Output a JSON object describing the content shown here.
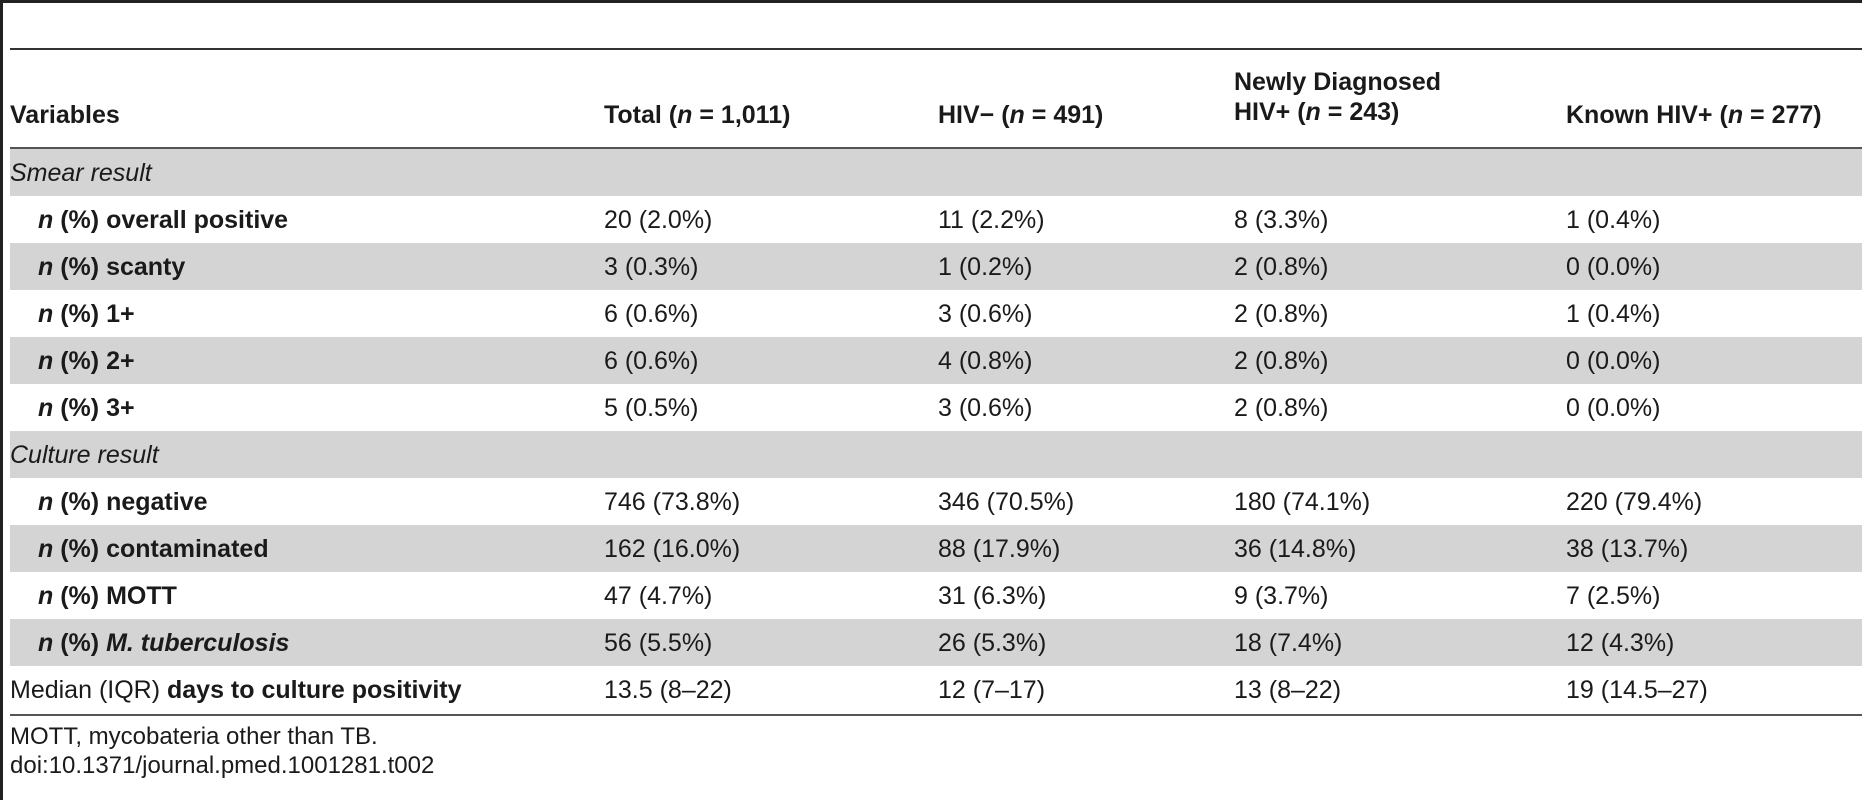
{
  "table": {
    "headers": {
      "variables": "Variables",
      "total": {
        "pre": "Total (",
        "n": "n",
        "post": " = 1,011)"
      },
      "hiv_neg": {
        "pre": "HIV− (",
        "n": "n",
        "post": " = 491)"
      },
      "newly": {
        "line1": "Newly Diagnosed",
        "pre": "HIV+ (",
        "n": "n",
        "post": " = 243)"
      },
      "known": {
        "pre": "Known HIV+ (",
        "n": "n",
        "post": " = 277)"
      }
    },
    "n_prefix": "n",
    "pct_prefix": " (%) ",
    "smear_section": "Smear result",
    "smear_rows": [
      {
        "label": "overall positive",
        "values": [
          "20 (2.0%)",
          "11 (2.2%)",
          "8 (3.3%)",
          "1 (0.4%)"
        ]
      },
      {
        "label": "scanty",
        "values": [
          "3 (0.3%)",
          "1 (0.2%)",
          "2 (0.8%)",
          "0 (0.0%)"
        ]
      },
      {
        "label": "1+",
        "values": [
          "6 (0.6%)",
          "3 (0.6%)",
          "2 (0.8%)",
          "1 (0.4%)"
        ]
      },
      {
        "label": "2+",
        "values": [
          "6 (0.6%)",
          "4 (0.8%)",
          "2 (0.8%)",
          "0 (0.0%)"
        ]
      },
      {
        "label": "3+",
        "values": [
          "5 (0.5%)",
          "3 (0.6%)",
          "2 (0.8%)",
          "0 (0.0%)"
        ]
      }
    ],
    "culture_section": "Culture result",
    "culture_rows": [
      {
        "label": "negative",
        "values": [
          "746 (73.8%)",
          "346 (70.5%)",
          "180 (74.1%)",
          "220 (79.4%)"
        ]
      },
      {
        "label": "contaminated",
        "values": [
          "162 (16.0%)",
          "88 (17.9%)",
          "36 (14.8%)",
          "38 (13.7%)"
        ]
      },
      {
        "label": "MOTT",
        "values": [
          "47 (4.7%)",
          "31 (6.3%)",
          "9 (3.7%)",
          "7 (2.5%)"
        ]
      },
      {
        "label": "M. tuberculosis",
        "values": [
          "56 (5.5%)",
          "26 (5.3%)",
          "18 (7.4%)",
          "12 (4.3%)"
        ]
      }
    ],
    "median_row": {
      "pre": "Median (IQR) ",
      "label": "days to culture positivity",
      "values": [
        "13.5 (8–22)",
        "12 (7–17)",
        "13 (8–22)",
        "19 (14.5–27)"
      ]
    }
  },
  "footnote": "MOTT, mycobateria other than TB.",
  "doi": "doi:10.1371/journal.pmed.1001281.t002"
}
